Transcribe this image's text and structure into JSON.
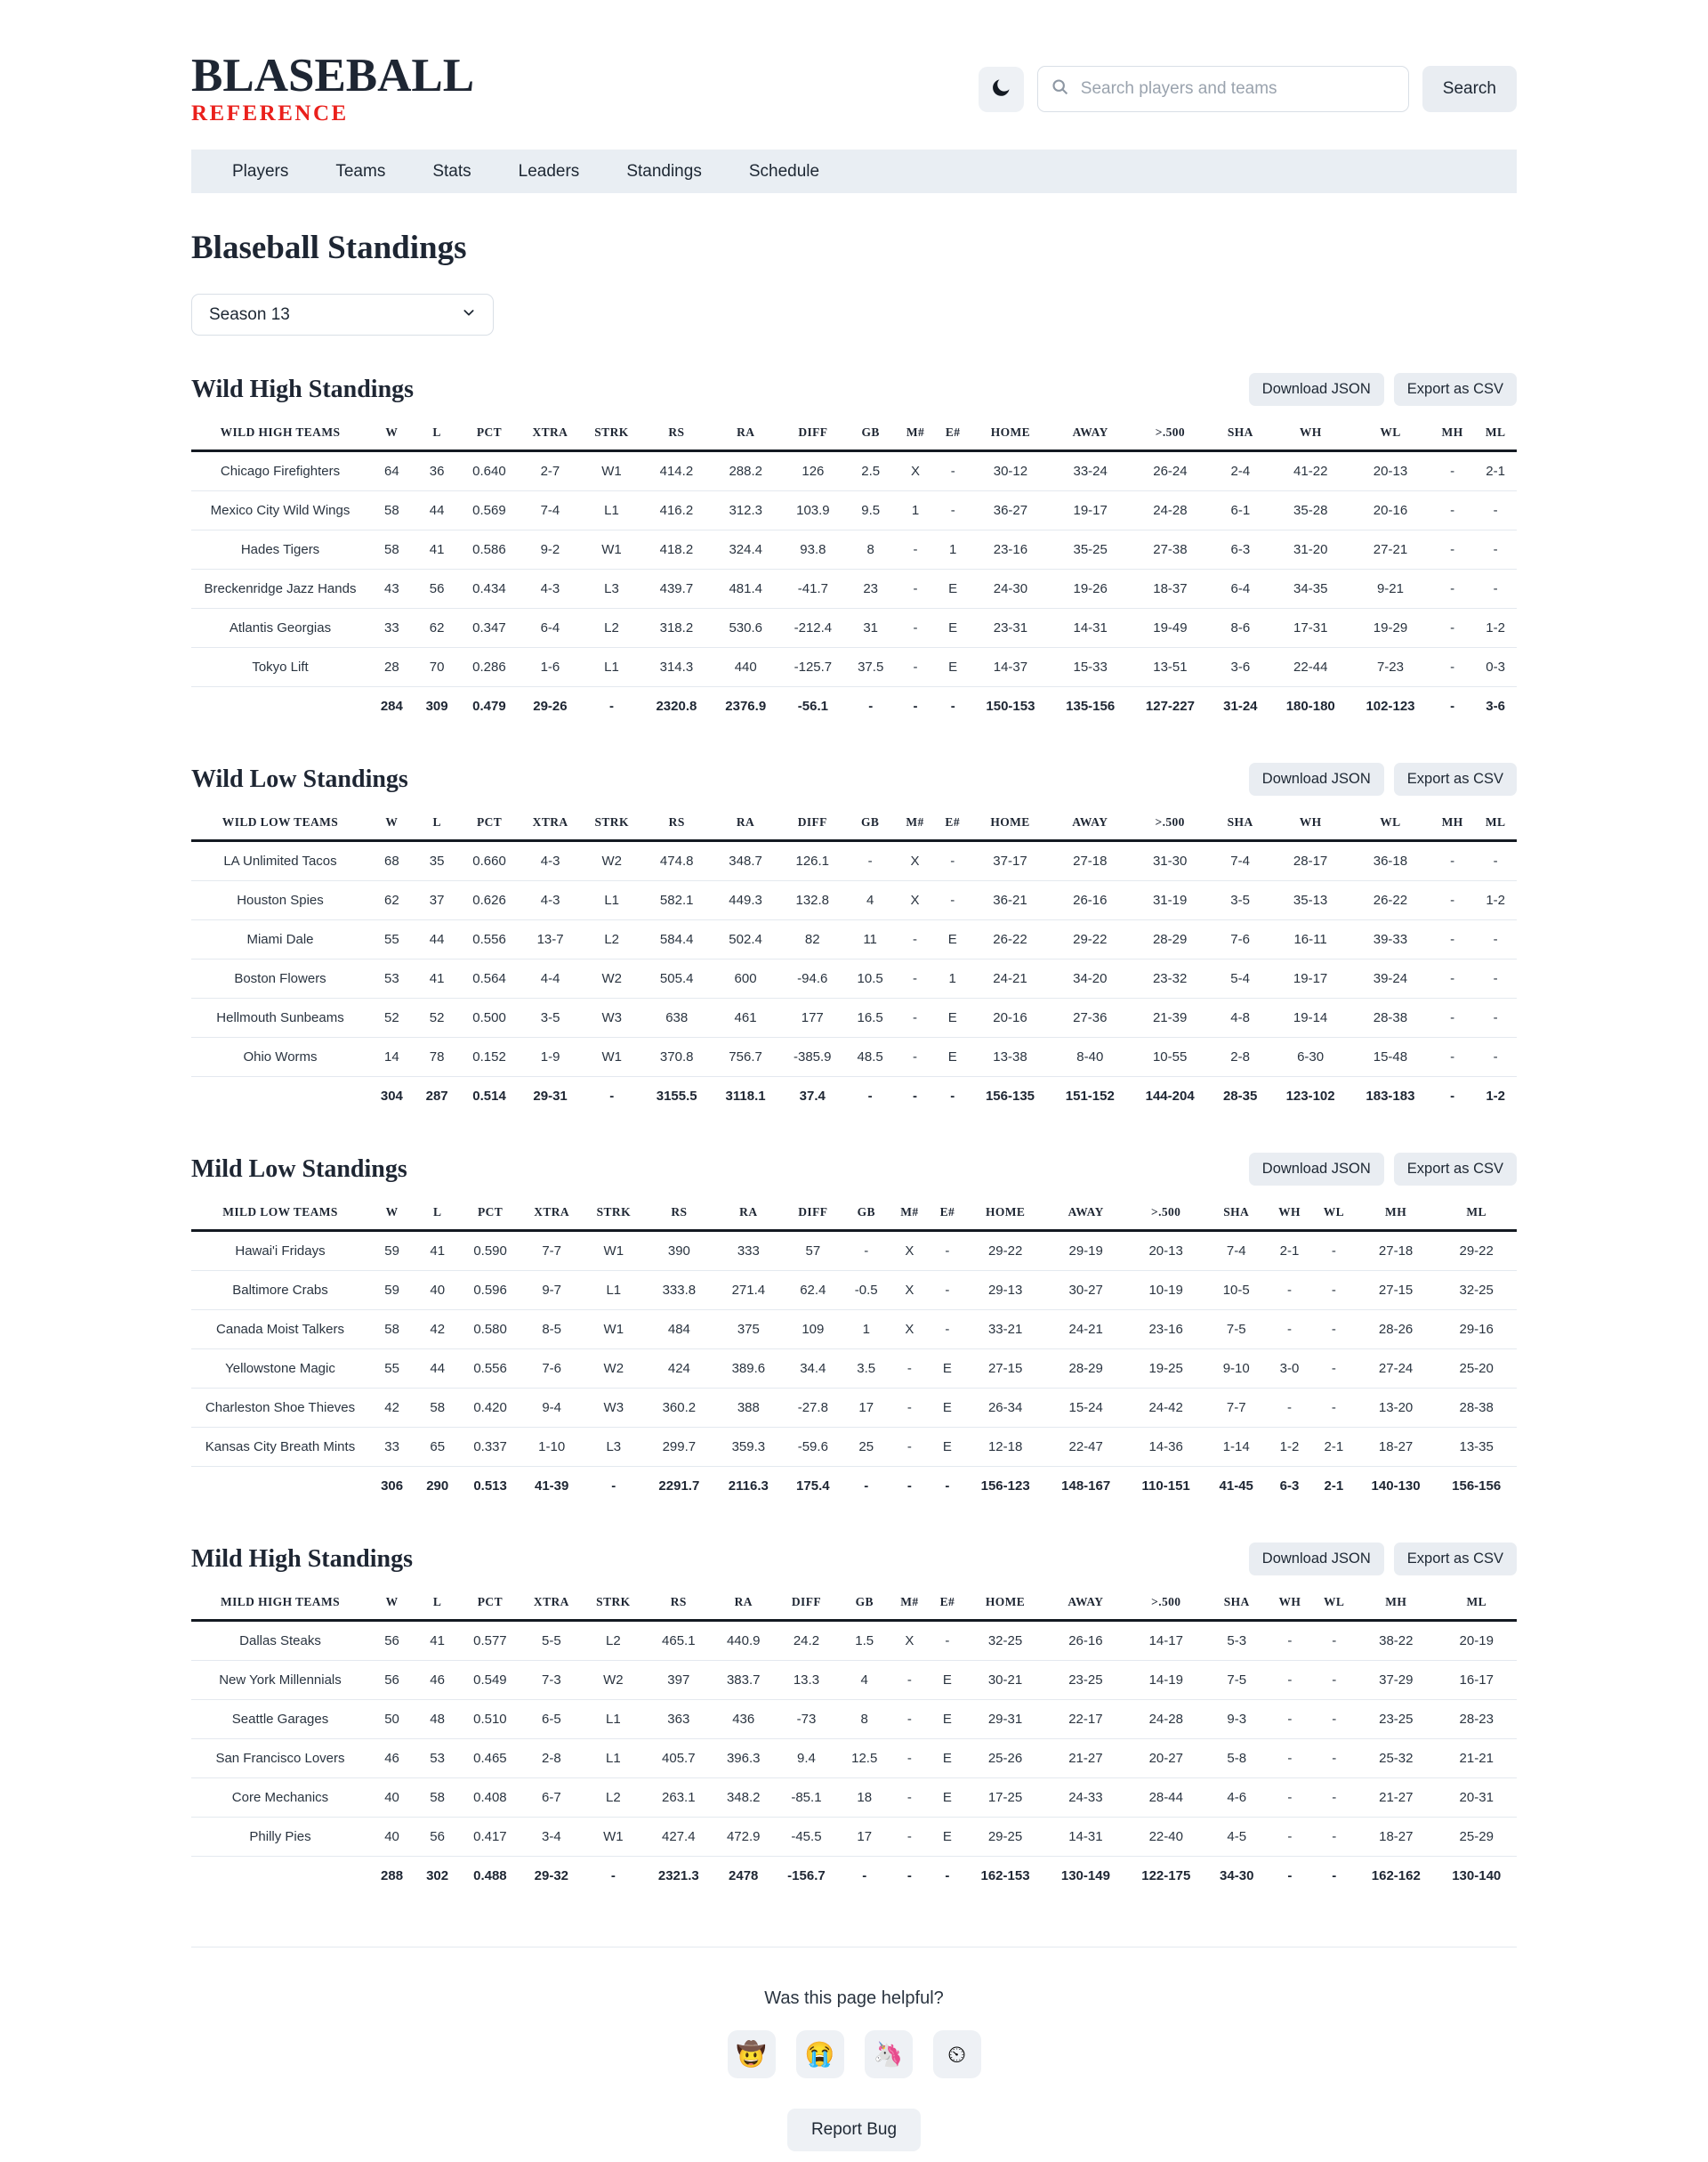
{
  "header": {
    "logo_title": "BLASEBALL",
    "logo_subtitle": "REFERENCE",
    "search_placeholder": "Search players and teams",
    "search_button": "Search"
  },
  "nav": {
    "items": [
      "Players",
      "Teams",
      "Stats",
      "Leaders",
      "Standings",
      "Schedule"
    ]
  },
  "page": {
    "title": "Blaseball Standings",
    "season_selected": "Season 13"
  },
  "actions": {
    "download_json": "Download JSON",
    "export_csv": "Export as CSV"
  },
  "icons": {
    "theme_toggle": "moon-icon",
    "search": "search-icon",
    "season_dropdown": "chevron-down-icon"
  },
  "colors": {
    "accent_red": "#ea201c",
    "text_dark": "#1e2633",
    "nav_bg": "#e9eef3",
    "chip_bg": "#e9edf2",
    "row_border": "#e4e9ef",
    "header_border": "#141a22"
  },
  "tables": [
    {
      "title": "Wild High Standings",
      "columns": [
        "WILD HIGH TEAMS",
        "W",
        "L",
        "PCT",
        "XTRA",
        "STRK",
        "RS",
        "RA",
        "DIFF",
        "GB",
        "M#",
        "E#",
        "HOME",
        "AWAY",
        ">.500",
        "SHA",
        "WH",
        "WL",
        "MH",
        "ML"
      ],
      "rows": [
        [
          "Chicago Firefighters",
          "64",
          "36",
          "0.640",
          "2-7",
          "W1",
          "414.2",
          "288.2",
          "126",
          "2.5",
          "X",
          "-",
          "30-12",
          "33-24",
          "26-24",
          "2-4",
          "41-22",
          "20-13",
          "-",
          "2-1"
        ],
        [
          "Mexico City Wild Wings",
          "58",
          "44",
          "0.569",
          "7-4",
          "L1",
          "416.2",
          "312.3",
          "103.9",
          "9.5",
          "1",
          "-",
          "36-27",
          "19-17",
          "24-28",
          "6-1",
          "35-28",
          "20-16",
          "-",
          "-"
        ],
        [
          "Hades Tigers",
          "58",
          "41",
          "0.586",
          "9-2",
          "W1",
          "418.2",
          "324.4",
          "93.8",
          "8",
          "-",
          "1",
          "23-16",
          "35-25",
          "27-38",
          "6-3",
          "31-20",
          "27-21",
          "-",
          "-"
        ],
        [
          "Breckenridge Jazz Hands",
          "43",
          "56",
          "0.434",
          "4-3",
          "L3",
          "439.7",
          "481.4",
          "-41.7",
          "23",
          "-",
          "E",
          "24-30",
          "19-26",
          "18-37",
          "6-4",
          "34-35",
          "9-21",
          "-",
          "-"
        ],
        [
          "Atlantis Georgias",
          "33",
          "62",
          "0.347",
          "6-4",
          "L2",
          "318.2",
          "530.6",
          "-212.4",
          "31",
          "-",
          "E",
          "23-31",
          "14-31",
          "19-49",
          "8-6",
          "17-31",
          "19-29",
          "-",
          "1-2"
        ],
        [
          "Tokyo Lift",
          "28",
          "70",
          "0.286",
          "1-6",
          "L1",
          "314.3",
          "440",
          "-125.7",
          "37.5",
          "-",
          "E",
          "14-37",
          "15-33",
          "13-51",
          "3-6",
          "22-44",
          "7-23",
          "-",
          "0-3"
        ]
      ],
      "totals": [
        "",
        "284",
        "309",
        "0.479",
        "29-26",
        "-",
        "2320.8",
        "2376.9",
        "-56.1",
        "-",
        "-",
        "-",
        "150-153",
        "135-156",
        "127-227",
        "31-24",
        "180-180",
        "102-123",
        "-",
        "3-6"
      ]
    },
    {
      "title": "Wild Low Standings",
      "columns": [
        "WILD LOW TEAMS",
        "W",
        "L",
        "PCT",
        "XTRA",
        "STRK",
        "RS",
        "RA",
        "DIFF",
        "GB",
        "M#",
        "E#",
        "HOME",
        "AWAY",
        ">.500",
        "SHA",
        "WH",
        "WL",
        "MH",
        "ML"
      ],
      "rows": [
        [
          "LA Unlimited Tacos",
          "68",
          "35",
          "0.660",
          "4-3",
          "W2",
          "474.8",
          "348.7",
          "126.1",
          "-",
          "X",
          "-",
          "37-17",
          "27-18",
          "31-30",
          "7-4",
          "28-17",
          "36-18",
          "-",
          "-"
        ],
        [
          "Houston Spies",
          "62",
          "37",
          "0.626",
          "4-3",
          "L1",
          "582.1",
          "449.3",
          "132.8",
          "4",
          "X",
          "-",
          "36-21",
          "26-16",
          "31-19",
          "3-5",
          "35-13",
          "26-22",
          "-",
          "1-2"
        ],
        [
          "Miami Dale",
          "55",
          "44",
          "0.556",
          "13-7",
          "L2",
          "584.4",
          "502.4",
          "82",
          "11",
          "-",
          "E",
          "26-22",
          "29-22",
          "28-29",
          "7-6",
          "16-11",
          "39-33",
          "-",
          "-"
        ],
        [
          "Boston Flowers",
          "53",
          "41",
          "0.564",
          "4-4",
          "W2",
          "505.4",
          "600",
          "-94.6",
          "10.5",
          "-",
          "1",
          "24-21",
          "34-20",
          "23-32",
          "5-4",
          "19-17",
          "39-24",
          "-",
          "-"
        ],
        [
          "Hellmouth Sunbeams",
          "52",
          "52",
          "0.500",
          "3-5",
          "W3",
          "638",
          "461",
          "177",
          "16.5",
          "-",
          "E",
          "20-16",
          "27-36",
          "21-39",
          "4-8",
          "19-14",
          "28-38",
          "-",
          "-"
        ],
        [
          "Ohio Worms",
          "14",
          "78",
          "0.152",
          "1-9",
          "W1",
          "370.8",
          "756.7",
          "-385.9",
          "48.5",
          "-",
          "E",
          "13-38",
          "8-40",
          "10-55",
          "2-8",
          "6-30",
          "15-48",
          "-",
          "-"
        ]
      ],
      "totals": [
        "",
        "304",
        "287",
        "0.514",
        "29-31",
        "-",
        "3155.5",
        "3118.1",
        "37.4",
        "-",
        "-",
        "-",
        "156-135",
        "151-152",
        "144-204",
        "28-35",
        "123-102",
        "183-183",
        "-",
        "1-2"
      ]
    },
    {
      "title": "Mild Low Standings",
      "columns": [
        "MILD LOW TEAMS",
        "W",
        "L",
        "PCT",
        "XTRA",
        "STRK",
        "RS",
        "RA",
        "DIFF",
        "GB",
        "M#",
        "E#",
        "HOME",
        "AWAY",
        ">.500",
        "SHA",
        "WH",
        "WL",
        "MH",
        "ML"
      ],
      "rows": [
        [
          "Hawai'i Fridays",
          "59",
          "41",
          "0.590",
          "7-7",
          "W1",
          "390",
          "333",
          "57",
          "-",
          "X",
          "-",
          "29-22",
          "29-19",
          "20-13",
          "7-4",
          "2-1",
          "-",
          "27-18",
          "29-22"
        ],
        [
          "Baltimore Crabs",
          "59",
          "40",
          "0.596",
          "9-7",
          "L1",
          "333.8",
          "271.4",
          "62.4",
          "-0.5",
          "X",
          "-",
          "29-13",
          "30-27",
          "10-19",
          "10-5",
          "-",
          "-",
          "27-15",
          "32-25"
        ],
        [
          "Canada Moist Talkers",
          "58",
          "42",
          "0.580",
          "8-5",
          "W1",
          "484",
          "375",
          "109",
          "1",
          "X",
          "-",
          "33-21",
          "24-21",
          "23-16",
          "7-5",
          "-",
          "-",
          "28-26",
          "29-16"
        ],
        [
          "Yellowstone Magic",
          "55",
          "44",
          "0.556",
          "7-6",
          "W2",
          "424",
          "389.6",
          "34.4",
          "3.5",
          "-",
          "E",
          "27-15",
          "28-29",
          "19-25",
          "9-10",
          "3-0",
          "-",
          "27-24",
          "25-20"
        ],
        [
          "Charleston Shoe Thieves",
          "42",
          "58",
          "0.420",
          "9-4",
          "W3",
          "360.2",
          "388",
          "-27.8",
          "17",
          "-",
          "E",
          "26-34",
          "15-24",
          "24-42",
          "7-7",
          "-",
          "-",
          "13-20",
          "28-38"
        ],
        [
          "Kansas City Breath Mints",
          "33",
          "65",
          "0.337",
          "1-10",
          "L3",
          "299.7",
          "359.3",
          "-59.6",
          "25",
          "-",
          "E",
          "12-18",
          "22-47",
          "14-36",
          "1-14",
          "1-2",
          "2-1",
          "18-27",
          "13-35"
        ]
      ],
      "totals": [
        "",
        "306",
        "290",
        "0.513",
        "41-39",
        "-",
        "2291.7",
        "2116.3",
        "175.4",
        "-",
        "-",
        "-",
        "156-123",
        "148-167",
        "110-151",
        "41-45",
        "6-3",
        "2-1",
        "140-130",
        "156-156"
      ]
    },
    {
      "title": "Mild High Standings",
      "columns": [
        "MILD HIGH TEAMS",
        "W",
        "L",
        "PCT",
        "XTRA",
        "STRK",
        "RS",
        "RA",
        "DIFF",
        "GB",
        "M#",
        "E#",
        "HOME",
        "AWAY",
        ">.500",
        "SHA",
        "WH",
        "WL",
        "MH",
        "ML"
      ],
      "rows": [
        [
          "Dallas Steaks",
          "56",
          "41",
          "0.577",
          "5-5",
          "L2",
          "465.1",
          "440.9",
          "24.2",
          "1.5",
          "X",
          "-",
          "32-25",
          "26-16",
          "14-17",
          "5-3",
          "-",
          "-",
          "38-22",
          "20-19"
        ],
        [
          "New York Millennials",
          "56",
          "46",
          "0.549",
          "7-3",
          "W2",
          "397",
          "383.7",
          "13.3",
          "4",
          "-",
          "E",
          "30-21",
          "23-25",
          "14-19",
          "7-5",
          "-",
          "-",
          "37-29",
          "16-17"
        ],
        [
          "Seattle Garages",
          "50",
          "48",
          "0.510",
          "6-5",
          "L1",
          "363",
          "436",
          "-73",
          "8",
          "-",
          "E",
          "29-31",
          "22-17",
          "24-28",
          "9-3",
          "-",
          "-",
          "23-25",
          "28-23"
        ],
        [
          "San Francisco Lovers",
          "46",
          "53",
          "0.465",
          "2-8",
          "L1",
          "405.7",
          "396.3",
          "9.4",
          "12.5",
          "-",
          "E",
          "25-26",
          "21-27",
          "20-27",
          "5-8",
          "-",
          "-",
          "25-32",
          "21-21"
        ],
        [
          "Core Mechanics",
          "40",
          "58",
          "0.408",
          "6-7",
          "L2",
          "263.1",
          "348.2",
          "-85.1",
          "18",
          "-",
          "E",
          "17-25",
          "24-33",
          "28-44",
          "4-6",
          "-",
          "-",
          "21-27",
          "20-31"
        ],
        [
          "Philly Pies",
          "40",
          "56",
          "0.417",
          "3-4",
          "W1",
          "427.4",
          "472.9",
          "-45.5",
          "17",
          "-",
          "E",
          "29-25",
          "14-31",
          "22-40",
          "4-5",
          "-",
          "-",
          "18-27",
          "25-29"
        ]
      ],
      "totals": [
        "",
        "288",
        "302",
        "0.488",
        "29-32",
        "-",
        "2321.3",
        "2478",
        "-156.7",
        "-",
        "-",
        "-",
        "162-153",
        "130-149",
        "122-175",
        "34-30",
        "-",
        "-",
        "162-162",
        "130-140"
      ]
    }
  ],
  "feedback": {
    "question": "Was this page helpful?",
    "emojis": [
      "🤠",
      "😭",
      "🦄",
      "⏲"
    ],
    "emoji_names": [
      "cowboy-emoji-button",
      "crying-emoji-button",
      "unicorn-emoji-button",
      "timer-emoji-button"
    ],
    "report_bug": "Report Bug"
  }
}
